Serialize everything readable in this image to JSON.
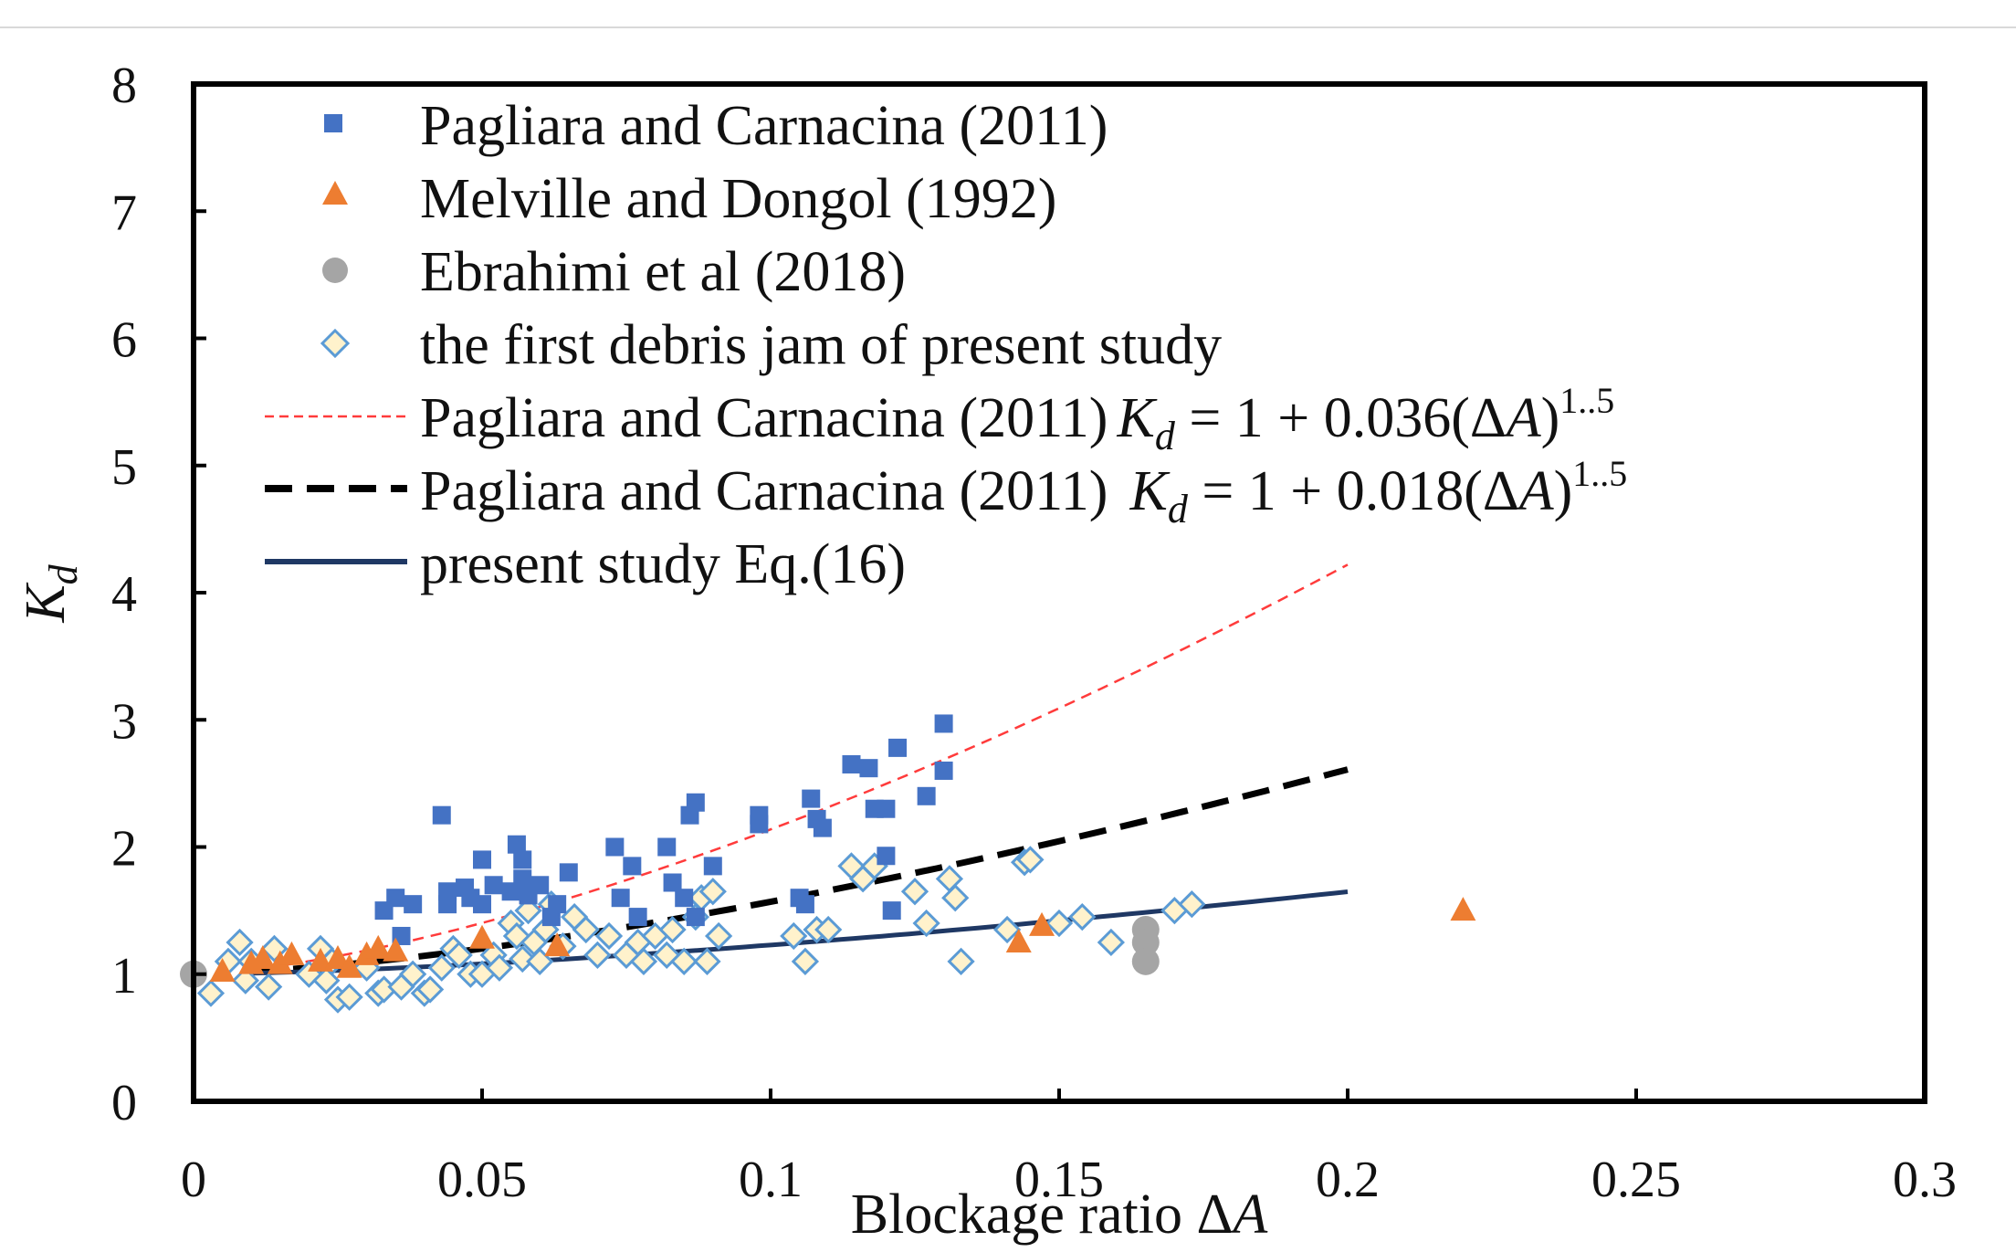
{
  "chart_data": {
    "type": "scatter",
    "title": "",
    "xlabel": "Blockage ratio ΔA",
    "xlabel_text": "Blockage ratio Δ",
    "xlabel_var": "A",
    "ylabel": "Kd",
    "ylabel_main": "K",
    "ylabel_sub": "d",
    "xlim": [
      0,
      0.3
    ],
    "ylim": [
      0,
      8
    ],
    "xticks": [
      "0",
      "0.05",
      "0.1",
      "0.15",
      "0.2",
      "0.25",
      "0.3"
    ],
    "xtick_values": [
      0,
      0.05,
      0.1,
      0.15,
      0.2,
      0.25,
      0.3
    ],
    "yticks": [
      "0",
      "1",
      "2",
      "3",
      "4",
      "5",
      "6",
      "7",
      "8"
    ],
    "ytick_values": [
      0,
      1,
      2,
      3,
      4,
      5,
      6,
      7,
      8
    ],
    "grid": false,
    "legend_position": "top-left",
    "colors": {
      "pagliara_points": "#4472C4",
      "melville_points": "#ED7D31",
      "ebrahimi_points": "#A5A5A5",
      "present_points_stroke": "#5B9BD5",
      "present_points_fill": "#FFF2CC",
      "curve_036": "#FF3B3B",
      "curve_018": "#000000",
      "curve_present": "#1F3864"
    },
    "series": [
      {
        "name": "Pagliara and Carnacina (2011)",
        "kind": "scatter",
        "marker": "square",
        "x": [
          0.033,
          0.035,
          0.036,
          0.038,
          0.043,
          0.044,
          0.044,
          0.047,
          0.048,
          0.05,
          0.05,
          0.052,
          0.055,
          0.056,
          0.057,
          0.057,
          0.058,
          0.06,
          0.062,
          0.063,
          0.065,
          0.073,
          0.074,
          0.076,
          0.077,
          0.082,
          0.083,
          0.085,
          0.086,
          0.087,
          0.087,
          0.09,
          0.098,
          0.098,
          0.105,
          0.106,
          0.107,
          0.108,
          0.109,
          0.114,
          0.117,
          0.118,
          0.12,
          0.12,
          0.121,
          0.122,
          0.127,
          0.13,
          0.13
        ],
        "y": [
          1.5,
          1.6,
          1.3,
          1.55,
          2.25,
          1.65,
          1.55,
          1.68,
          1.6,
          1.9,
          1.55,
          1.7,
          1.65,
          2.02,
          1.9,
          1.75,
          1.62,
          1.7,
          1.45,
          1.55,
          1.8,
          2.0,
          1.6,
          1.85,
          1.45,
          2.0,
          1.72,
          1.6,
          2.25,
          2.35,
          1.45,
          1.85,
          2.25,
          2.18,
          1.6,
          1.55,
          2.38,
          2.22,
          2.15,
          2.65,
          2.62,
          2.3,
          2.3,
          1.93,
          1.5,
          2.78,
          2.4,
          2.97,
          2.6
        ]
      },
      {
        "name": "Melville and Dongol (1992)",
        "kind": "scatter",
        "marker": "triangle",
        "x": [
          0.005,
          0.01,
          0.012,
          0.015,
          0.017,
          0.022,
          0.025,
          0.027,
          0.03,
          0.032,
          0.035,
          0.05,
          0.063,
          0.143,
          0.147,
          0.22
        ],
        "y": [
          1.02,
          1.08,
          1.12,
          1.08,
          1.15,
          1.1,
          1.12,
          1.05,
          1.15,
          1.2,
          1.18,
          1.28,
          1.22,
          1.25,
          1.38,
          1.5
        ]
      },
      {
        "name": "Ebrahimi et al (2018)",
        "kind": "scatter",
        "marker": "circle",
        "x": [
          0.0,
          0.165,
          0.165,
          0.165
        ],
        "y": [
          1.0,
          1.35,
          1.25,
          1.1
        ]
      },
      {
        "name": "the first debris jam of present study",
        "kind": "scatter",
        "marker": "diamond",
        "x": [
          0.003,
          0.006,
          0.008,
          0.009,
          0.01,
          0.013,
          0.014,
          0.02,
          0.022,
          0.023,
          0.024,
          0.025,
          0.027,
          0.03,
          0.032,
          0.033,
          0.036,
          0.038,
          0.04,
          0.041,
          0.043,
          0.045,
          0.046,
          0.048,
          0.05,
          0.052,
          0.053,
          0.055,
          0.056,
          0.057,
          0.058,
          0.059,
          0.06,
          0.061,
          0.062,
          0.064,
          0.066,
          0.068,
          0.07,
          0.072,
          0.075,
          0.077,
          0.078,
          0.08,
          0.082,
          0.083,
          0.085,
          0.087,
          0.088,
          0.089,
          0.09,
          0.091,
          0.104,
          0.106,
          0.108,
          0.11,
          0.114,
          0.116,
          0.118,
          0.125,
          0.127,
          0.131,
          0.132,
          0.133,
          0.141,
          0.144,
          0.145,
          0.15,
          0.154,
          0.159,
          0.17,
          0.173
        ],
        "y": [
          0.85,
          1.1,
          1.25,
          0.95,
          1.1,
          0.9,
          1.2,
          1.0,
          1.2,
          0.95,
          1.1,
          0.8,
          0.82,
          1.05,
          0.85,
          0.88,
          0.9,
          1.0,
          0.85,
          0.88,
          1.05,
          1.2,
          1.15,
          1.0,
          1.0,
          1.15,
          1.05,
          1.4,
          1.3,
          1.12,
          1.5,
          1.25,
          1.1,
          1.35,
          1.55,
          1.22,
          1.45,
          1.35,
          1.15,
          1.3,
          1.15,
          1.25,
          1.1,
          1.3,
          1.15,
          1.35,
          1.1,
          1.45,
          1.6,
          1.1,
          1.65,
          1.3,
          1.3,
          1.1,
          1.35,
          1.35,
          1.85,
          1.75,
          1.85,
          1.65,
          1.4,
          1.75,
          1.6,
          1.1,
          1.35,
          1.88,
          1.9,
          1.4,
          1.45,
          1.25,
          1.5,
          1.55
        ]
      },
      {
        "name": "Pagliara and Carnacina (2011)",
        "kind": "line",
        "style": "thin-dashed",
        "coef": 0.036,
        "exponent": 1.5,
        "eq_lhs": "K",
        "eq_sub": "d",
        "eq_rhs": " = 1 + 0.036(Δ",
        "eq_var": "A",
        "eq_close": ")",
        "eq_exp": "1..5",
        "x_range": [
          0.01,
          0.2
        ]
      },
      {
        "name": "Pagliara and Carnacina (2011)",
        "kind": "line",
        "style": "thick-dashed",
        "coef": 0.018,
        "exponent": 1.5,
        "eq_lhs": "K",
        "eq_sub": "d",
        "eq_rhs": " = 1 + 0.018(Δ",
        "eq_var": "A",
        "eq_close": ")",
        "eq_exp": "1..5",
        "x_range": [
          0.01,
          0.2
        ]
      },
      {
        "name": "present study Eq.(16)",
        "kind": "line",
        "style": "solid",
        "coef": 0.00725,
        "exponent": 1.5,
        "x_range": [
          0.01,
          0.2
        ]
      }
    ]
  }
}
